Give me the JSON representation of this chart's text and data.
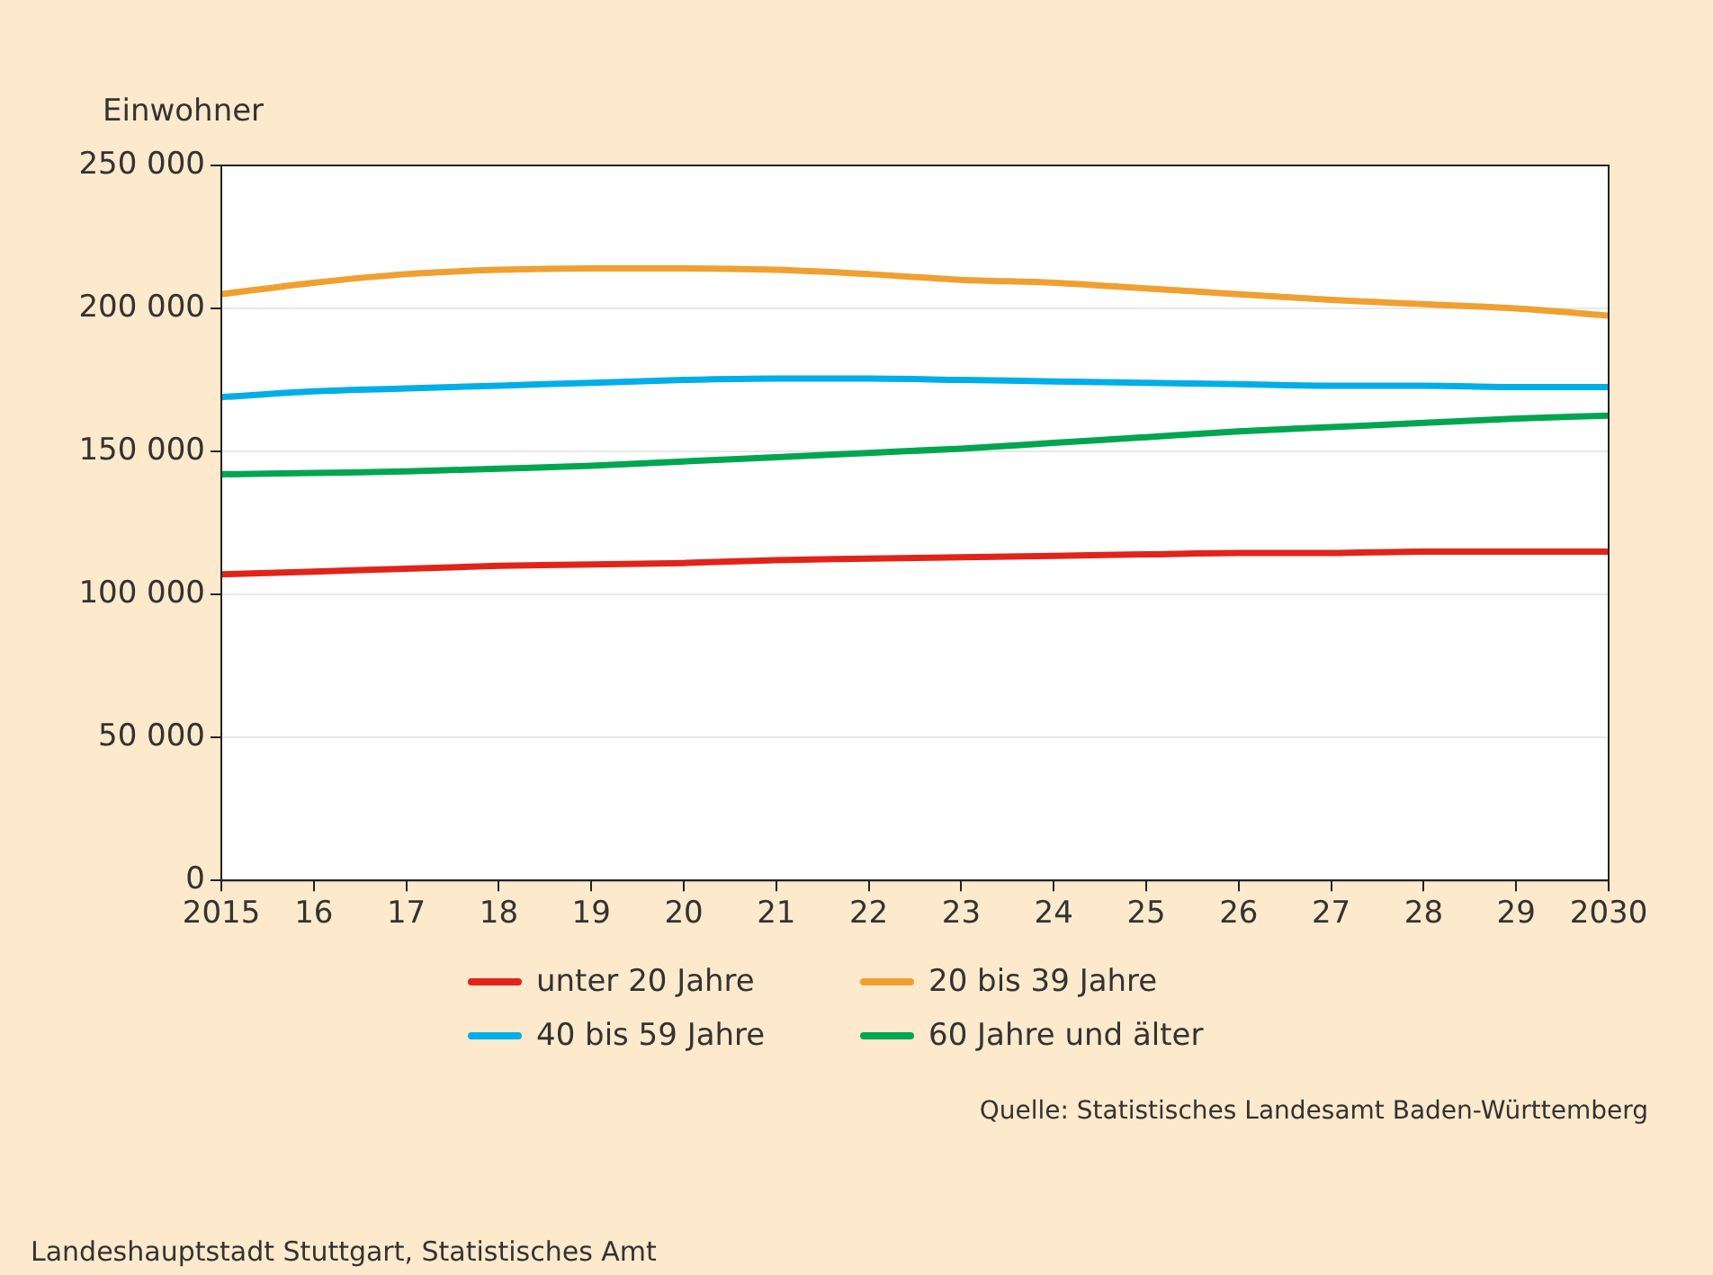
{
  "chart_data": {
    "type": "line",
    "ylabel": "Einwohner",
    "x": [
      2015,
      2016,
      2017,
      2018,
      2019,
      2020,
      2021,
      2022,
      2023,
      2024,
      2025,
      2026,
      2027,
      2028,
      2029,
      2030
    ],
    "xlim": [
      2015,
      2030
    ],
    "xticks": [
      2015,
      {
        "value": 2016,
        "label": "16"
      },
      {
        "value": 2017,
        "label": "17"
      },
      {
        "value": 2018,
        "label": "18"
      },
      {
        "value": 2019,
        "label": "19"
      },
      {
        "value": 2020,
        "label": "20"
      },
      {
        "value": 2021,
        "label": "21"
      },
      {
        "value": 2022,
        "label": "22"
      },
      {
        "value": 2023,
        "label": "23"
      },
      {
        "value": 2024,
        "label": "24"
      },
      {
        "value": 2025,
        "label": "25"
      },
      {
        "value": 2026,
        "label": "26"
      },
      {
        "value": 2027,
        "label": "27"
      },
      {
        "value": 2028,
        "label": "28"
      },
      {
        "value": 2029,
        "label": "29"
      },
      2030
    ],
    "ylim": [
      0,
      250000
    ],
    "yticks": [
      0,
      {
        "value": 50000,
        "label": "50 000"
      },
      {
        "value": 100000,
        "label": "100 000"
      },
      {
        "value": 150000,
        "label": "150 000"
      },
      {
        "value": 200000,
        "label": "200 000"
      },
      {
        "value": 250000,
        "label": "250 000"
      }
    ],
    "grid": "y",
    "legend": "bottom",
    "marker": "none",
    "line_style": "solid",
    "series": [
      {
        "name": "unter 20 Jahre",
        "color": "#e2231a",
        "values": [
          107000,
          108000,
          109000,
          110000,
          110500,
          111000,
          112000,
          112500,
          113000,
          113500,
          114000,
          114500,
          114500,
          115000,
          115000,
          115000
        ]
      },
      {
        "name": "20 bis 39 Jahre",
        "color": "#f0a030",
        "values": [
          205000,
          209000,
          212000,
          213500,
          214000,
          214000,
          213500,
          212000,
          210000,
          209000,
          207000,
          205000,
          203000,
          201500,
          200000,
          197500
        ]
      },
      {
        "name": "40 bis 59 Jahre",
        "color": "#00aee8",
        "values": [
          169000,
          171000,
          172000,
          173000,
          174000,
          175000,
          175500,
          175500,
          175000,
          174500,
          174000,
          173500,
          173000,
          173000,
          172500,
          172500
        ]
      },
      {
        "name": "60 Jahre und älter",
        "color": "#00a650",
        "values": [
          142000,
          142500,
          143000,
          144000,
          145000,
          146500,
          148000,
          149500,
          151000,
          153000,
          155000,
          157000,
          158500,
          160000,
          161500,
          162500
        ]
      }
    ],
    "annotations": [
      "Quelle: Statistisches Landesamt Baden-Württemberg",
      "Landeshauptstadt Stuttgart, Statistisches Amt"
    ]
  }
}
